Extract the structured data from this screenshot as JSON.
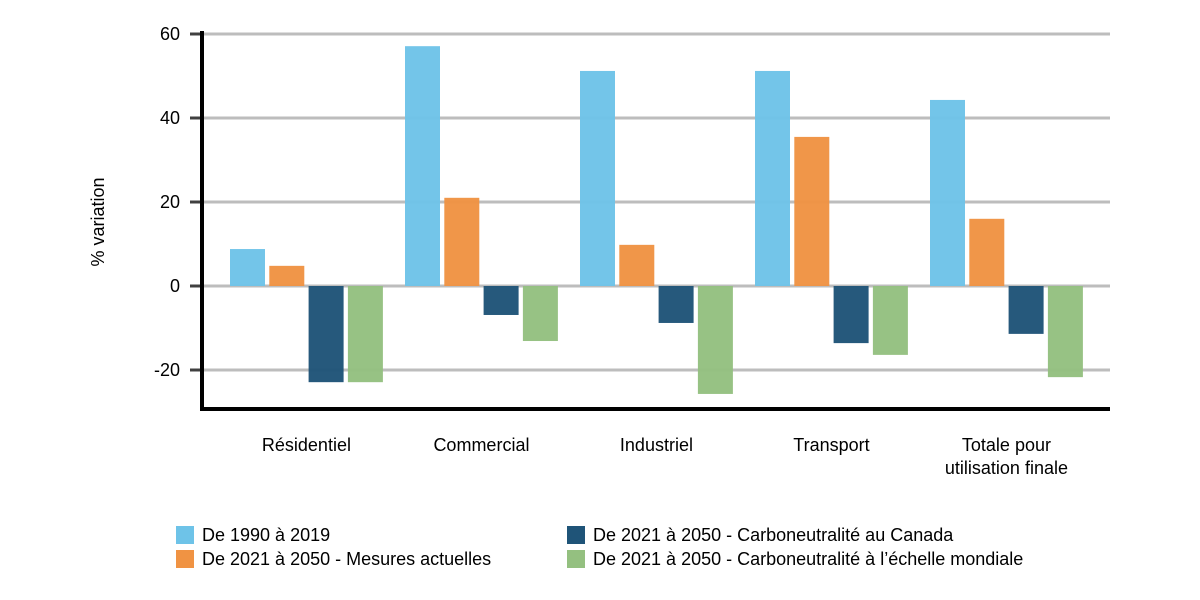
{
  "chart_data": {
    "type": "bar",
    "title": "",
    "xlabel": "",
    "ylabel": "% variation",
    "ylim": [
      -29,
      61
    ],
    "yticks": [
      -20,
      0,
      20,
      40,
      60
    ],
    "ytick_labels": [
      "-20",
      "0",
      "20",
      "40",
      "60"
    ],
    "grid": true,
    "legend_position": "bottom",
    "categories": [
      [
        "Résidentiel"
      ],
      [
        "Commercial"
      ],
      [
        "Industriel"
      ],
      [
        "Transport"
      ],
      [
        "Totale pour",
        "utilisation finale"
      ]
    ],
    "series": [
      {
        "name": "De 1990 à 2019",
        "color": "#6EC3E8",
        "values": [
          8.8,
          57.1,
          51.2,
          51.2,
          44.3
        ]
      },
      {
        "name": "De 2021 à 2050 - Mesures actuelles",
        "color": "#F09343",
        "values": [
          4.8,
          21.0,
          9.8,
          35.5,
          16.0
        ]
      },
      {
        "name": "De 2021 à 2050 - Carboneutralité au Canada",
        "color": "#1F5478",
        "values": [
          -22.9,
          -6.9,
          -8.8,
          -13.6,
          -11.4
        ]
      },
      {
        "name": "De 2021 à 2050 - Carboneutralité à l’échelle mondiale",
        "color": "#94C080",
        "values": [
          -22.9,
          -13.1,
          -25.7,
          -16.4,
          -21.7
        ]
      }
    ]
  },
  "colors": {
    "gridline": "#BDBDBD",
    "axis": "#000000",
    "tick": "#404040"
  }
}
